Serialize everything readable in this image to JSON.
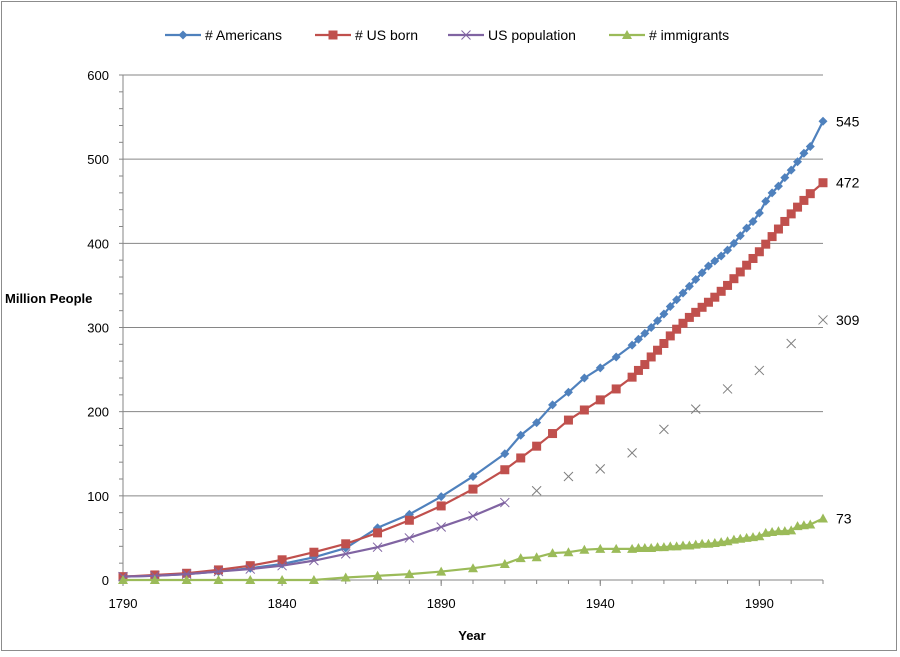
{
  "chart_data": {
    "type": "line",
    "title": "",
    "xlabel": "Year",
    "ylabel": "Million People",
    "xlim": [
      1790,
      2010
    ],
    "ylim": [
      0,
      600
    ],
    "x_ticks": [
      1790,
      1840,
      1890,
      1940,
      1990
    ],
    "y_ticks": [
      0,
      100,
      200,
      300,
      400,
      500,
      600
    ],
    "grid": "horizontal",
    "legend_position": "top",
    "end_labels": [
      {
        "series": "# Americans",
        "x": 2010,
        "y": 545,
        "text": "545"
      },
      {
        "series": "# US born",
        "x": 2010,
        "y": 472,
        "text": "472"
      },
      {
        "series": "US population",
        "x": 2010,
        "y": 309,
        "text": "309"
      },
      {
        "series": "# immigrants",
        "x": 2010,
        "y": 73,
        "text": "73"
      }
    ],
    "series": [
      {
        "name": "# Americans",
        "color": "#4F81BD",
        "marker": "diamond",
        "points": [
          [
            1790,
            4
          ],
          [
            1800,
            5
          ],
          [
            1810,
            7
          ],
          [
            1820,
            10
          ],
          [
            1830,
            14
          ],
          [
            1840,
            19
          ],
          [
            1850,
            27
          ],
          [
            1860,
            38
          ],
          [
            1870,
            62
          ],
          [
            1880,
            78
          ],
          [
            1890,
            99
          ],
          [
            1900,
            123
          ],
          [
            1910,
            150
          ],
          [
            1915,
            172
          ],
          [
            1920,
            187
          ],
          [
            1925,
            208
          ],
          [
            1930,
            223
          ],
          [
            1935,
            240
          ],
          [
            1940,
            252
          ],
          [
            1945,
            265
          ],
          [
            1950,
            279
          ],
          [
            1952,
            286
          ],
          [
            1954,
            293
          ],
          [
            1956,
            300
          ],
          [
            1958,
            308
          ],
          [
            1960,
            316
          ],
          [
            1962,
            325
          ],
          [
            1964,
            333
          ],
          [
            1966,
            341
          ],
          [
            1968,
            349
          ],
          [
            1970,
            357
          ],
          [
            1972,
            365
          ],
          [
            1974,
            373
          ],
          [
            1976,
            379
          ],
          [
            1978,
            385
          ],
          [
            1980,
            392
          ],
          [
            1982,
            400
          ],
          [
            1984,
            409
          ],
          [
            1986,
            418
          ],
          [
            1988,
            426
          ],
          [
            1990,
            436
          ],
          [
            1992,
            450
          ],
          [
            1994,
            460
          ],
          [
            1996,
            468
          ],
          [
            1998,
            478
          ],
          [
            2000,
            487
          ],
          [
            2002,
            497
          ],
          [
            2004,
            507
          ],
          [
            2006,
            515
          ],
          [
            2010,
            545
          ]
        ]
      },
      {
        "name": "# US born",
        "color": "#C0504D",
        "marker": "square",
        "points": [
          [
            1790,
            4
          ],
          [
            1800,
            6
          ],
          [
            1810,
            8
          ],
          [
            1820,
            12
          ],
          [
            1830,
            17
          ],
          [
            1840,
            24
          ],
          [
            1850,
            33
          ],
          [
            1860,
            43
          ],
          [
            1870,
            56
          ],
          [
            1880,
            71
          ],
          [
            1890,
            88
          ],
          [
            1900,
            108
          ],
          [
            1910,
            131
          ],
          [
            1915,
            145
          ],
          [
            1920,
            159
          ],
          [
            1925,
            174
          ],
          [
            1930,
            190
          ],
          [
            1935,
            202
          ],
          [
            1940,
            214
          ],
          [
            1945,
            227
          ],
          [
            1950,
            241
          ],
          [
            1952,
            249
          ],
          [
            1954,
            256
          ],
          [
            1956,
            265
          ],
          [
            1958,
            273
          ],
          [
            1960,
            281
          ],
          [
            1962,
            290
          ],
          [
            1964,
            298
          ],
          [
            1966,
            305
          ],
          [
            1968,
            312
          ],
          [
            1970,
            318
          ],
          [
            1972,
            324
          ],
          [
            1974,
            330
          ],
          [
            1976,
            336
          ],
          [
            1978,
            343
          ],
          [
            1980,
            350
          ],
          [
            1982,
            358
          ],
          [
            1984,
            366
          ],
          [
            1986,
            374
          ],
          [
            1988,
            382
          ],
          [
            1990,
            390
          ],
          [
            1992,
            399
          ],
          [
            1994,
            408
          ],
          [
            1996,
            417
          ],
          [
            1998,
            426
          ],
          [
            2000,
            435
          ],
          [
            2002,
            443
          ],
          [
            2004,
            451
          ],
          [
            2006,
            459
          ],
          [
            2010,
            472
          ]
        ]
      },
      {
        "name": "US population",
        "color": "#8064A2",
        "marker": "x",
        "points": [
          [
            1790,
            4
          ],
          [
            1800,
            5
          ],
          [
            1810,
            7
          ],
          [
            1820,
            10
          ],
          [
            1830,
            13
          ],
          [
            1840,
            17
          ],
          [
            1850,
            23
          ],
          [
            1860,
            31
          ],
          [
            1870,
            39
          ],
          [
            1880,
            50
          ],
          [
            1890,
            63
          ],
          [
            1900,
            76
          ],
          [
            1910,
            92
          ],
          [
            1920,
            106
          ],
          [
            1930,
            123
          ],
          [
            1940,
            132
          ],
          [
            1950,
            151
          ],
          [
            1960,
            179
          ],
          [
            1970,
            203
          ],
          [
            1980,
            227
          ],
          [
            1990,
            249
          ],
          [
            2000,
            281
          ],
          [
            2010,
            309
          ]
        ]
      },
      {
        "name": "# immigrants",
        "color": "#9BBB59",
        "marker": "triangle",
        "points": [
          [
            1790,
            0
          ],
          [
            1800,
            0
          ],
          [
            1810,
            0
          ],
          [
            1820,
            0
          ],
          [
            1830,
            0
          ],
          [
            1840,
            0
          ],
          [
            1850,
            0
          ],
          [
            1860,
            3
          ],
          [
            1870,
            5
          ],
          [
            1880,
            7
          ],
          [
            1890,
            10
          ],
          [
            1900,
            14
          ],
          [
            1910,
            19
          ],
          [
            1915,
            26
          ],
          [
            1920,
            27
          ],
          [
            1925,
            32
          ],
          [
            1930,
            33
          ],
          [
            1935,
            36
          ],
          [
            1940,
            37
          ],
          [
            1945,
            37
          ],
          [
            1950,
            37
          ],
          [
            1952,
            38
          ],
          [
            1954,
            38
          ],
          [
            1956,
            38
          ],
          [
            1958,
            39
          ],
          [
            1960,
            39
          ],
          [
            1962,
            40
          ],
          [
            1964,
            40
          ],
          [
            1966,
            41
          ],
          [
            1968,
            41
          ],
          [
            1970,
            42
          ],
          [
            1972,
            43
          ],
          [
            1974,
            43
          ],
          [
            1976,
            44
          ],
          [
            1978,
            45
          ],
          [
            1980,
            46
          ],
          [
            1982,
            48
          ],
          [
            1984,
            49
          ],
          [
            1986,
            50
          ],
          [
            1988,
            51
          ],
          [
            1990,
            52
          ],
          [
            1992,
            56
          ],
          [
            1994,
            57
          ],
          [
            1996,
            58
          ],
          [
            1998,
            58
          ],
          [
            2000,
            59
          ],
          [
            2002,
            64
          ],
          [
            2004,
            65
          ],
          [
            2006,
            66
          ],
          [
            2010,
            73
          ]
        ]
      }
    ]
  }
}
